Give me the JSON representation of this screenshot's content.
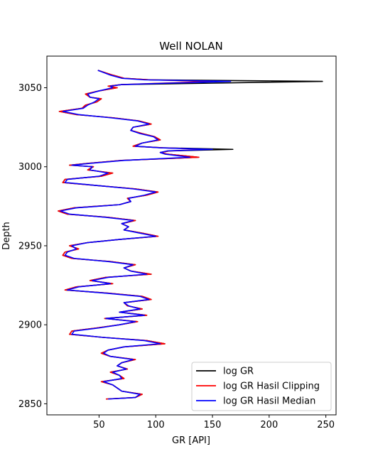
{
  "chart_data": {
    "type": "line",
    "title": "Well NOLAN",
    "xlabel": "GR [API]",
    "ylabel": "Depth",
    "xlim": [
      4,
      259
    ],
    "ylim": [
      2843,
      3070
    ],
    "y_inverted": false,
    "xticks": [
      50,
      100,
      150,
      200,
      250
    ],
    "yticks": [
      2850,
      2900,
      2950,
      3000,
      3050
    ],
    "grid": false,
    "legend": "lower-right",
    "colors": {
      "log GR": "#000000",
      "log GR Hasil Clipping": "#ff0000",
      "log GR Hasil Median": "#0000ff"
    },
    "series": [
      {
        "name": "log GR",
        "depth": [
          3061,
          3058,
          3056,
          3055,
          3054,
          3052,
          3051,
          3050,
          3048,
          3046,
          3044,
          3043,
          3041,
          3039,
          3037,
          3035,
          3033,
          3031,
          3029,
          3027,
          3025,
          3023,
          3021,
          3019,
          3017,
          3015,
          3013,
          3012,
          3011,
          3010,
          3009,
          3008,
          3006,
          3004,
          3002,
          3001,
          3000,
          2998,
          2996,
          2994,
          2992,
          2990,
          2988,
          2986,
          2984,
          2982,
          2980,
          2978,
          2976,
          2974,
          2972,
          2970,
          2968,
          2966,
          2964,
          2962,
          2960,
          2958,
          2956,
          2954,
          2952,
          2950,
          2948,
          2946,
          2944,
          2942,
          2940,
          2938,
          2936,
          2934,
          2932,
          2930,
          2928,
          2926,
          2924,
          2922,
          2920,
          2918,
          2916,
          2914,
          2912,
          2910,
          2908,
          2906,
          2904,
          2902,
          2900,
          2898,
          2896,
          2894,
          2892,
          2890,
          2888,
          2886,
          2884,
          2882,
          2880,
          2878,
          2876,
          2874,
          2872,
          2870,
          2868,
          2866,
          2864,
          2862,
          2860,
          2858,
          2856,
          2854,
          2853
        ],
        "values": [
          49,
          62,
          72,
          95,
          247,
          70,
          58,
          66,
          50,
          38,
          42,
          52,
          48,
          38,
          35,
          15,
          30,
          62,
          85,
          96,
          80,
          78,
          88,
          99,
          104,
          88,
          80,
          106,
          168,
          112,
          104,
          110,
          138,
          70,
          38,
          24,
          45,
          40,
          62,
          52,
          20,
          18,
          50,
          82,
          102,
          92,
          75,
          78,
          68,
          28,
          14,
          22,
          58,
          82,
          70,
          76,
          72,
          88,
          102,
          68,
          40,
          24,
          32,
          20,
          18,
          26,
          60,
          82,
          72,
          78,
          96,
          56,
          42,
          62,
          30,
          20,
          58,
          88,
          96,
          72,
          75,
          88,
          68,
          92,
          55,
          84,
          68,
          48,
          26,
          24,
          54,
          92,
          108,
          72,
          58,
          52,
          60,
          82,
          70,
          66,
          75,
          60,
          68,
          72,
          52,
          62,
          66,
          70,
          88,
          82,
          56
        ],
        "clip": [
          3055,
          160
        ]
      },
      {
        "name": "log GR Hasil Clipping",
        "depth": [
          3061,
          3058,
          3056,
          3055,
          3054,
          3052,
          3051,
          3050,
          3048,
          3046,
          3044,
          3043,
          3041,
          3039,
          3037,
          3035,
          3033,
          3031,
          3029,
          3027,
          3025,
          3023,
          3021,
          3019,
          3017,
          3015,
          3013,
          3012,
          3011,
          3010,
          3009,
          3008,
          3006,
          3004,
          3002,
          3001,
          3000,
          2998,
          2996,
          2994,
          2992,
          2990,
          2988,
          2986,
          2984,
          2982,
          2980,
          2978,
          2976,
          2974,
          2972,
          2970,
          2968,
          2966,
          2964,
          2962,
          2960,
          2958,
          2956,
          2954,
          2952,
          2950,
          2948,
          2946,
          2944,
          2942,
          2940,
          2938,
          2936,
          2934,
          2932,
          2930,
          2928,
          2926,
          2924,
          2922,
          2920,
          2918,
          2916,
          2914,
          2912,
          2910,
          2908,
          2906,
          2904,
          2902,
          2900,
          2898,
          2896,
          2894,
          2892,
          2890,
          2888,
          2886,
          2884,
          2882,
          2880,
          2878,
          2876,
          2874,
          2872,
          2870,
          2868,
          2866,
          2864,
          2862,
          2860,
          2858,
          2856,
          2854,
          2853
        ],
        "values": [
          49,
          62,
          72,
          95,
          150,
          70,
          58,
          66,
          50,
          38,
          42,
          52,
          48,
          38,
          35,
          15,
          30,
          62,
          85,
          96,
          80,
          78,
          88,
          99,
          104,
          88,
          80,
          106,
          145,
          112,
          104,
          110,
          138,
          70,
          38,
          24,
          45,
          40,
          62,
          52,
          20,
          18,
          50,
          82,
          102,
          92,
          75,
          78,
          68,
          28,
          14,
          22,
          58,
          82,
          70,
          76,
          72,
          88,
          102,
          68,
          40,
          24,
          32,
          20,
          18,
          26,
          60,
          82,
          72,
          78,
          96,
          56,
          42,
          62,
          30,
          20,
          58,
          88,
          96,
          72,
          75,
          88,
          68,
          92,
          55,
          84,
          68,
          48,
          26,
          24,
          54,
          92,
          108,
          72,
          58,
          52,
          60,
          82,
          70,
          66,
          75,
          60,
          68,
          72,
          52,
          62,
          66,
          70,
          88,
          82,
          56
        ]
      },
      {
        "name": "log GR Hasil Median",
        "depth": [
          3061,
          3058,
          3056,
          3055,
          3054,
          3052,
          3051,
          3050,
          3048,
          3046,
          3044,
          3043,
          3041,
          3039,
          3037,
          3035,
          3033,
          3031,
          3029,
          3027,
          3025,
          3023,
          3021,
          3019,
          3017,
          3015,
          3013,
          3012,
          3011,
          3010,
          3009,
          3008,
          3006,
          3004,
          3002,
          3001,
          3000,
          2998,
          2996,
          2994,
          2992,
          2990,
          2988,
          2986,
          2984,
          2982,
          2980,
          2978,
          2976,
          2974,
          2972,
          2970,
          2968,
          2966,
          2964,
          2962,
          2960,
          2958,
          2956,
          2954,
          2952,
          2950,
          2948,
          2946,
          2944,
          2942,
          2940,
          2938,
          2936,
          2934,
          2932,
          2930,
          2928,
          2926,
          2924,
          2922,
          2920,
          2918,
          2916,
          2914,
          2912,
          2910,
          2908,
          2906,
          2904,
          2902,
          2900,
          2898,
          2896,
          2894,
          2892,
          2890,
          2888,
          2886,
          2884,
          2882,
          2880,
          2878,
          2876,
          2874,
          2872,
          2870,
          2868,
          2866,
          2864,
          2862,
          2860,
          2858,
          2856,
          2854,
          2853
        ],
        "values": [
          49,
          60,
          70,
          90,
          166,
          70,
          60,
          62,
          50,
          40,
          42,
          50,
          46,
          40,
          36,
          18,
          32,
          60,
          84,
          94,
          80,
          78,
          86,
          98,
          102,
          88,
          82,
          104,
          150,
          110,
          104,
          108,
          130,
          72,
          40,
          26,
          44,
          42,
          58,
          50,
          22,
          20,
          50,
          80,
          100,
          90,
          76,
          78,
          68,
          30,
          16,
          24,
          56,
          80,
          70,
          76,
          72,
          86,
          100,
          68,
          40,
          26,
          30,
          22,
          20,
          28,
          58,
          80,
          72,
          78,
          92,
          58,
          44,
          60,
          32,
          22,
          56,
          86,
          94,
          72,
          76,
          86,
          68,
          90,
          56,
          82,
          68,
          50,
          28,
          26,
          54,
          90,
          104,
          72,
          58,
          54,
          60,
          80,
          70,
          66,
          74,
          62,
          68,
          70,
          54,
          62,
          66,
          70,
          86,
          82,
          58
        ]
      }
    ]
  }
}
